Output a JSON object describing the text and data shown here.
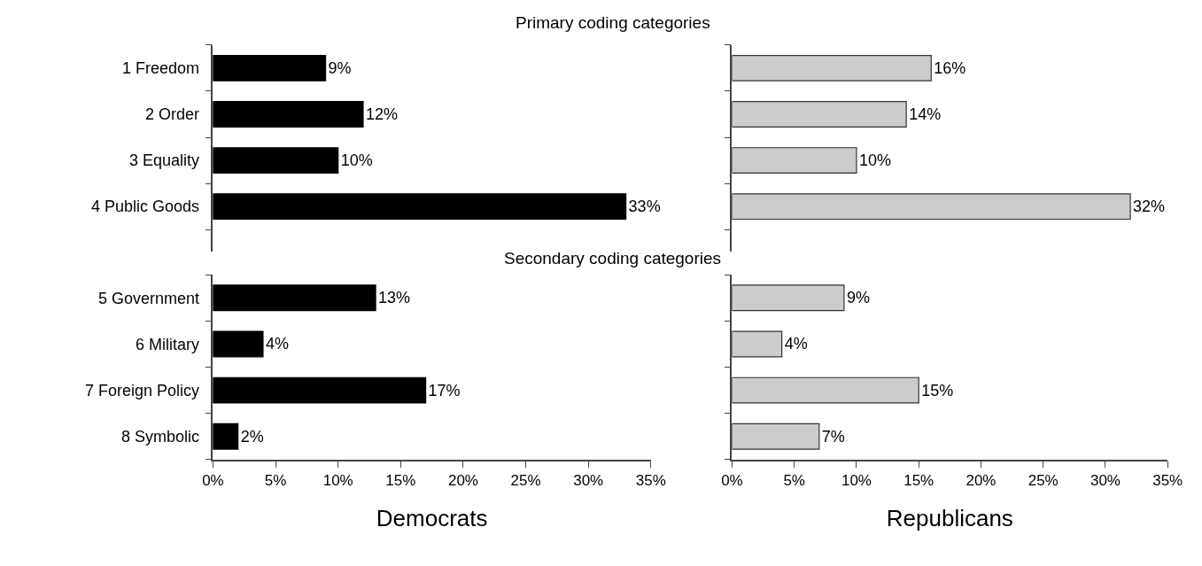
{
  "chart_data": [
    {
      "type": "bar",
      "orientation": "horizontal",
      "title": "Primary coding categories",
      "categories": [
        "1 Freedom",
        "2 Order",
        "3 Equality",
        "4 Public Goods"
      ],
      "values": [
        9,
        12,
        10,
        33
      ],
      "value_labels": [
        "9%",
        "12%",
        "10%",
        "33%"
      ],
      "color": "#000000",
      "xlim": [
        0,
        35
      ],
      "tick_labels": "y"
    },
    {
      "type": "bar",
      "orientation": "horizontal",
      "categories": [
        null,
        null,
        null,
        null
      ],
      "values": [
        16,
        14,
        10,
        32
      ],
      "value_labels": [
        "16%",
        "14%",
        "10%",
        "32%"
      ],
      "color": "#cccccc",
      "xlim": [
        0,
        35
      ],
      "tick_labels": false
    },
    {
      "type": "bar",
      "orientation": "horizontal",
      "title": "Secondary coding categories",
      "xlabel": "Democrats",
      "categories": [
        "5 Government",
        "6 Military",
        "7 Foreign Policy",
        "8 Symbolic"
      ],
      "values": [
        13,
        4,
        17,
        2
      ],
      "value_labels": [
        "13%",
        "4%",
        "17%",
        "2%"
      ],
      "color": "#000000",
      "xlim": [
        0,
        35
      ],
      "xticks": [
        {
          "value": 0,
          "label": "0%"
        },
        {
          "value": 5,
          "label": "5%"
        },
        {
          "value": 10,
          "label": "10%"
        },
        {
          "value": 15,
          "label": "15%"
        },
        {
          "value": 20,
          "label": "20%"
        },
        {
          "value": 25,
          "label": "25%"
        },
        {
          "value": 30,
          "label": "30%"
        },
        {
          "value": 35,
          "label": "35%"
        }
      ]
    },
    {
      "type": "bar",
      "orientation": "horizontal",
      "xlabel": "Republicans",
      "categories": [
        null,
        null,
        null,
        null
      ],
      "values": [
        9,
        4,
        15,
        7
      ],
      "value_labels": [
        "9%",
        "4%",
        "15%",
        "7%"
      ],
      "color": "#cccccc",
      "xlim": [
        0,
        35
      ],
      "xticks": [
        {
          "value": 0,
          "label": "0%"
        },
        {
          "value": 5,
          "label": "5%"
        },
        {
          "value": 10,
          "label": "10%"
        },
        {
          "value": 15,
          "label": "15%"
        },
        {
          "value": 20,
          "label": "20%"
        },
        {
          "value": 25,
          "label": "25%"
        },
        {
          "value": 30,
          "label": "30%"
        },
        {
          "value": 35,
          "label": "35%"
        }
      ],
      "tick_labels": "x"
    }
  ]
}
